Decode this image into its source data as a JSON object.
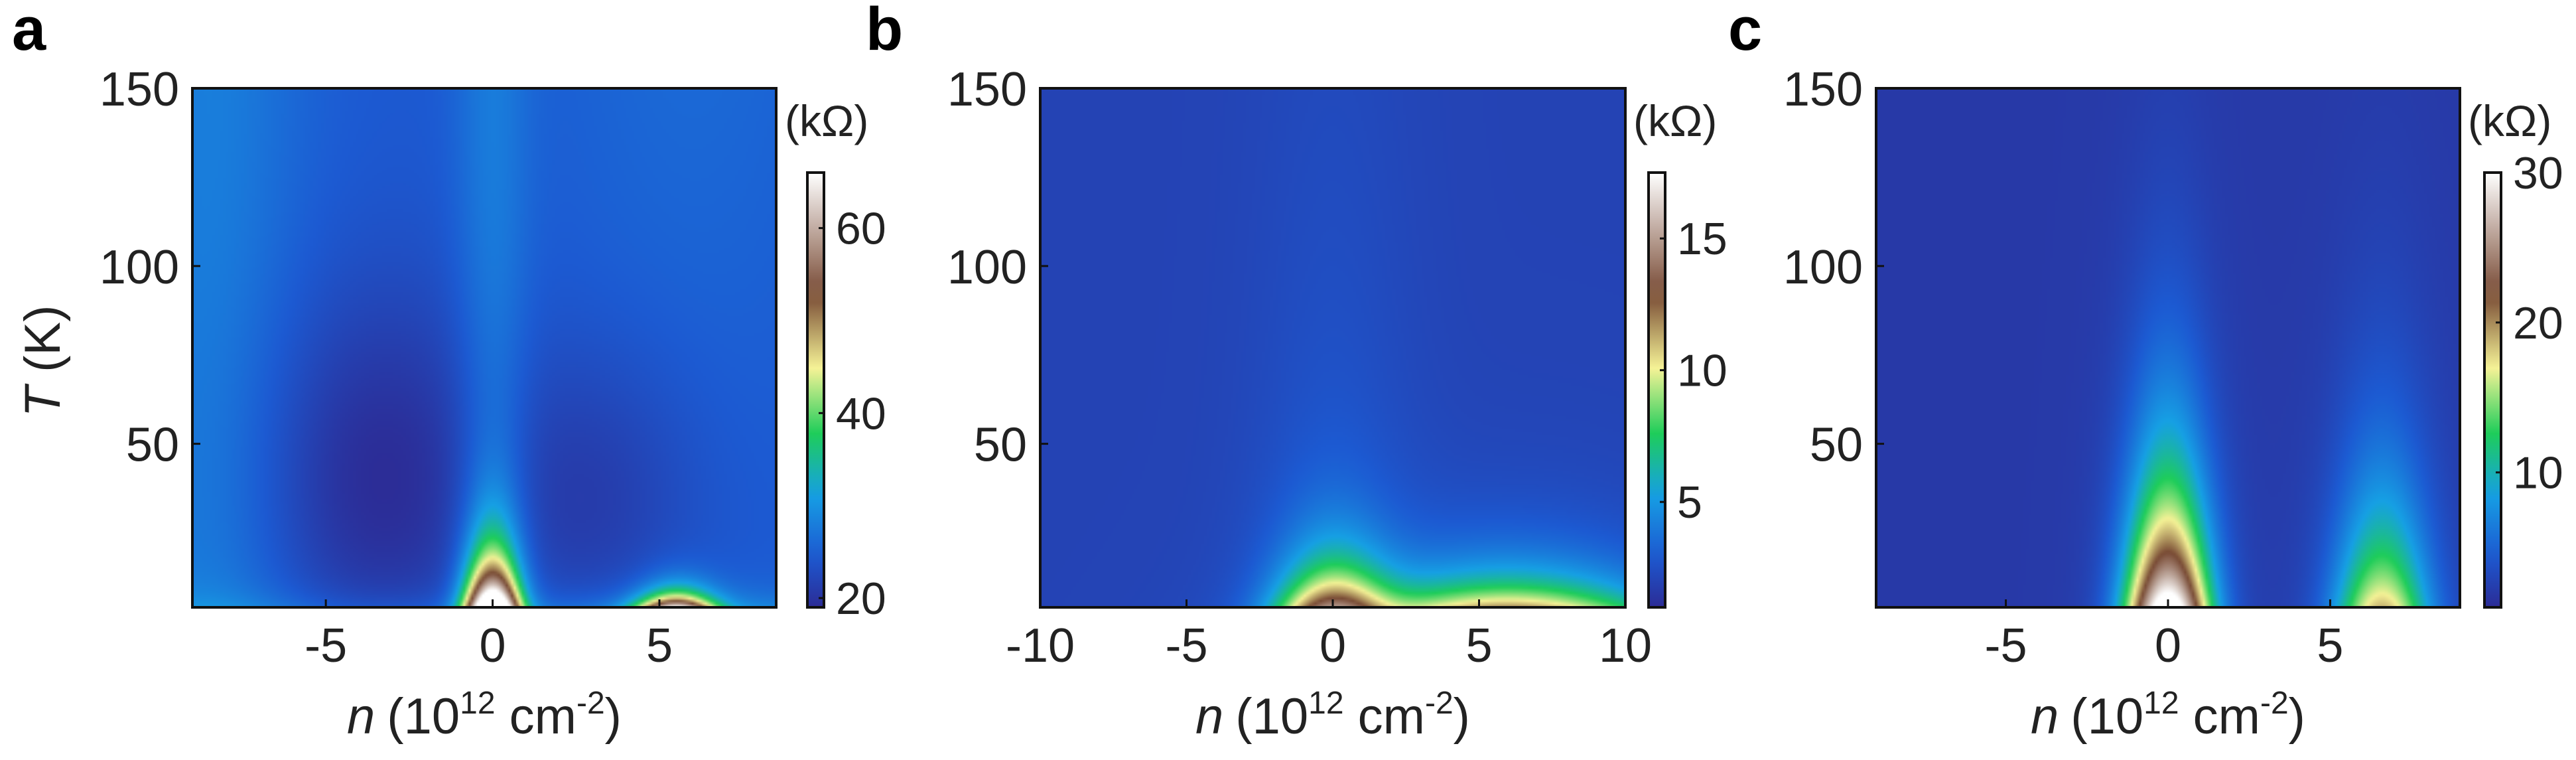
{
  "chart_data": [
    {
      "panel_label": "a",
      "type": "heatmap",
      "x_var": "n",
      "x_unit": "(10",
      "x_exp": "12",
      "x_unit2": " cm",
      "x_exp2": "-2",
      "x_close": ")",
      "y_var": "T",
      "y_unit": " (K)",
      "xlim": [
        -9,
        8.5
      ],
      "ylim": [
        4,
        150
      ],
      "xticks": [
        -5,
        0,
        5
      ],
      "yticks": [
        50,
        100,
        150
      ],
      "colorbar": {
        "unit": "(kΩ)",
        "min": 19,
        "max": 66,
        "ticks": [
          20,
          40,
          60
        ]
      },
      "features": [
        {
          "kind": "dirac_peak",
          "n": 0,
          "peak_kOhm": 66,
          "width_1e12": 0.55,
          "decay_K": 12
        },
        {
          "kind": "ridge",
          "n": 0,
          "value_kOhm": 30,
          "width_1e12": 0.8,
          "extends_to_K": 150
        },
        {
          "kind": "low_pocket",
          "n": -3.5,
          "T": 35,
          "value_kOhm": 19
        },
        {
          "kind": "low_pocket",
          "n": 3,
          "T": 35,
          "value_kOhm": 22
        },
        {
          "kind": "satellite_peak",
          "n": 5.5,
          "peak_kOhm": 48,
          "decay_K": 4
        }
      ]
    },
    {
      "panel_label": "b",
      "type": "heatmap",
      "x_var": "n",
      "x_unit": "(10",
      "x_exp": "12",
      "x_unit2": " cm",
      "x_exp2": "-2",
      "x_close": ")",
      "y_var": "",
      "y_unit": "",
      "xlim": [
        -10,
        10
      ],
      "ylim": [
        4,
        150
      ],
      "xticks": [
        -10,
        -5,
        0,
        5,
        10
      ],
      "yticks": [
        50,
        100,
        150
      ],
      "colorbar": {
        "unit": "(kΩ)",
        "min": 1,
        "max": 17.5,
        "ticks": [
          5,
          10,
          15
        ]
      },
      "features": [
        {
          "kind": "dirac_peak",
          "n": 0,
          "peak_kOhm": 12,
          "width_1e12": 1.3,
          "decay_K": 12
        },
        {
          "kind": "satellite_peak",
          "n": 6,
          "peak_kOhm": 10,
          "width_1e12": 3.5,
          "decay_K": 9
        }
      ]
    },
    {
      "panel_label": "c",
      "type": "heatmap",
      "x_var": "n",
      "x_unit": "(10",
      "x_exp": "12",
      "x_unit2": " cm",
      "x_exp2": "-2",
      "x_close": ")",
      "y_var": "",
      "y_unit": "",
      "xlim": [
        -9,
        9
      ],
      "ylim": [
        4,
        150
      ],
      "xticks": [
        -5,
        0,
        5
      ],
      "yticks": [
        50,
        100,
        150
      ],
      "colorbar": {
        "unit": "(kΩ)",
        "min": 1,
        "max": 30,
        "ticks": [
          10,
          20,
          30
        ]
      },
      "features": [
        {
          "kind": "dirac_peak",
          "n": 0,
          "peak_kOhm": 32,
          "width_1e12": 0.9,
          "decay_K": 32
        },
        {
          "kind": "satellite_peak",
          "n": 6.6,
          "peak_kOhm": 17,
          "width_1e12": 1.0,
          "decay_K": 30
        }
      ]
    }
  ]
}
